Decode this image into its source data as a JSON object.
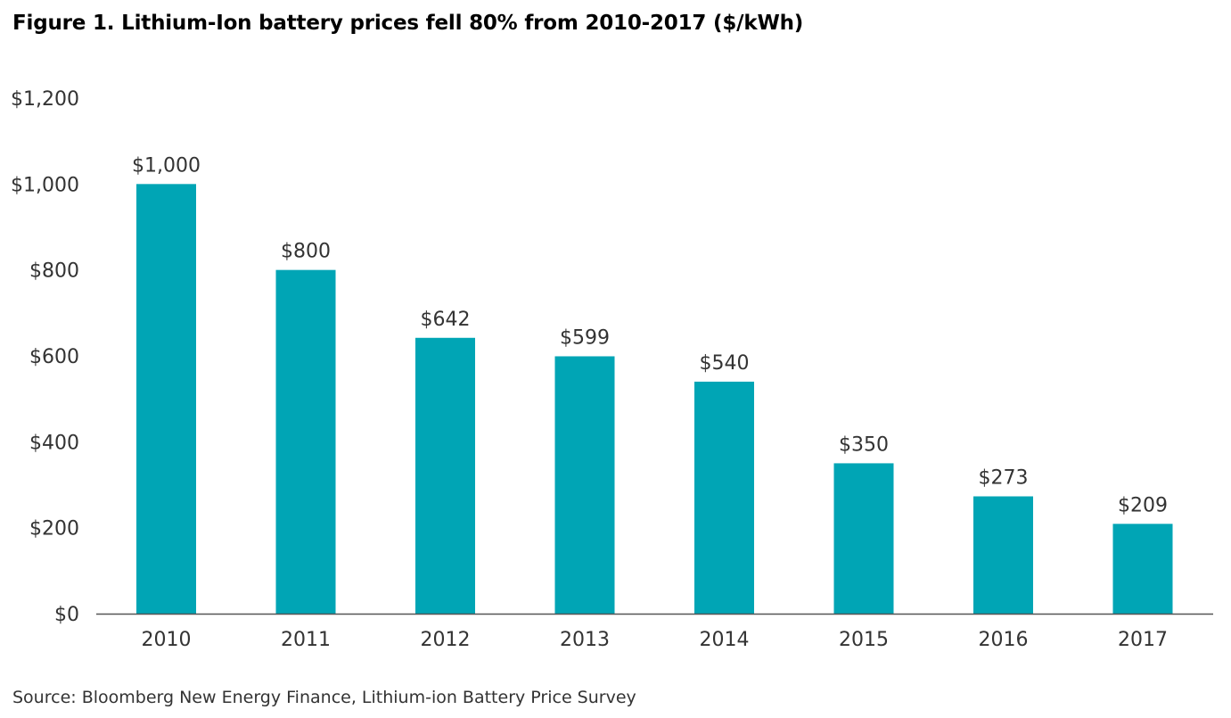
{
  "figure": {
    "title": "Figure 1. Lithium-Ion battery prices fell 80% from 2010-2017 ($/kWh)",
    "source": "Source: Bloomberg New Energy Finance, Lithium-ion Battery Price Survey"
  },
  "chart_data": {
    "type": "bar",
    "title": "Figure 1. Lithium-Ion battery prices fell 80% from 2010-2017 ($/kWh)",
    "xlabel": "",
    "ylabel": "",
    "categories": [
      "2010",
      "2011",
      "2012",
      "2013",
      "2014",
      "2015",
      "2016",
      "2017"
    ],
    "values": [
      1000,
      800,
      642,
      599,
      540,
      350,
      273,
      209
    ],
    "data_labels": [
      "$1,000",
      "$800",
      "$642",
      "$599",
      "$540",
      "$350",
      "$273",
      "$209"
    ],
    "ylim": [
      0,
      1200
    ],
    "yticks": [
      0,
      200,
      400,
      600,
      800,
      1000,
      1200
    ],
    "ytick_labels": [
      "$0",
      "$200",
      "$400",
      "$600",
      "$800",
      "$1,000",
      "$1,200"
    ],
    "grid": false,
    "legend": "none",
    "bar_color": "#00A5B5",
    "axis_color": "#555555"
  }
}
